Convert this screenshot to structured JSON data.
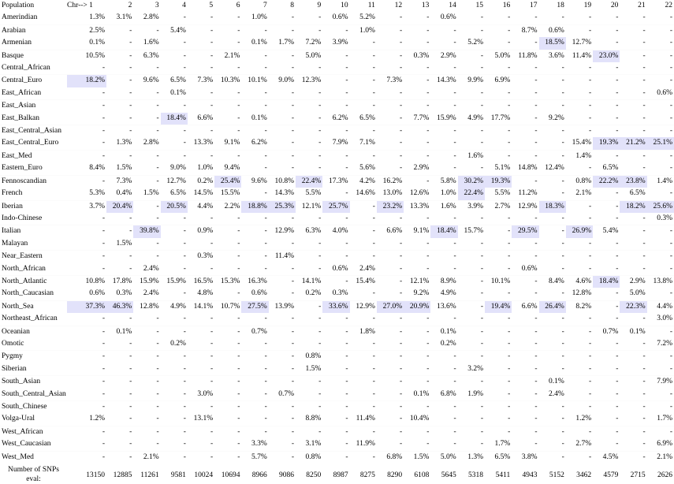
{
  "header": {
    "population_label": "Population",
    "chr_label": "Chr--> 1",
    "columns": [
      "2",
      "3",
      "4",
      "5",
      "6",
      "7",
      "8",
      "9",
      "10",
      "11",
      "12",
      "13",
      "14",
      "15",
      "16",
      "17",
      "18",
      "19",
      "20",
      "21",
      "22"
    ]
  },
  "rows": [
    {
      "name": "Amerindian",
      "values": [
        "1.3%",
        "3.1%",
        "2.8%",
        "-",
        "-",
        "-",
        "1.0%",
        "-",
        "-",
        "0.6%",
        "5.2%",
        "-",
        "-",
        "0.6%",
        "-",
        "-",
        "-",
        "-",
        "-",
        "-",
        "-",
        "-"
      ]
    },
    {
      "name": "Arabian",
      "values": [
        "2.5%",
        "-",
        "-",
        "5.4%",
        "-",
        "-",
        "-",
        "-",
        "-",
        "-",
        "1.0%",
        "-",
        "-",
        "-",
        "-",
        "-",
        "8.7%",
        "0.6%",
        "-",
        "-",
        "-",
        "-"
      ]
    },
    {
      "name": "Armenian",
      "values": [
        "0.1%",
        "-",
        "1.6%",
        "-",
        "-",
        "-",
        "0.1%",
        "1.7%",
        "7.2%",
        "3.9%",
        "-",
        "-",
        "-",
        "-",
        "5.2%",
        "-",
        "-",
        "18.5%",
        "12.7%",
        "-",
        "-",
        "-"
      ]
    },
    {
      "name": "Basque",
      "values": [
        "10.5%",
        "-",
        "6.3%",
        "-",
        "-",
        "2.1%",
        "-",
        "-",
        "5.0%",
        "-",
        "-",
        "-",
        "0.3%",
        "2.9%",
        "-",
        "5.0%",
        "11.8%",
        "3.6%",
        "11.4%",
        "23.0%",
        "-",
        "-"
      ]
    },
    {
      "name": "Central_African",
      "values": [
        "-",
        "-",
        "-",
        "-",
        "-",
        "-",
        "-",
        "-",
        "-",
        "-",
        "-",
        "-",
        "-",
        "-",
        "-",
        "-",
        "-",
        "-",
        "-",
        "-",
        "-",
        "-"
      ]
    },
    {
      "name": "Central_Euro",
      "values": [
        "18.2%",
        "-",
        "9.6%",
        "6.5%",
        "7.3%",
        "10.3%",
        "10.1%",
        "9.0%",
        "12.3%",
        "-",
        "-",
        "7.3%",
        "-",
        "14.3%",
        "9.9%",
        "6.9%",
        "-",
        "-",
        "-",
        "-",
        "-",
        "-"
      ]
    },
    {
      "name": "East_African",
      "values": [
        "-",
        "-",
        "-",
        "0.1%",
        "-",
        "-",
        "-",
        "-",
        "-",
        "-",
        "-",
        "-",
        "-",
        "-",
        "-",
        "-",
        "-",
        "-",
        "-",
        "-",
        "-",
        "0.6%"
      ]
    },
    {
      "name": "East_Asian",
      "values": [
        "-",
        "-",
        "-",
        "-",
        "-",
        "-",
        "-",
        "-",
        "-",
        "-",
        "-",
        "-",
        "-",
        "-",
        "-",
        "-",
        "-",
        "-",
        "-",
        "-",
        "-",
        "-"
      ]
    },
    {
      "name": "East_Balkan",
      "values": [
        "-",
        "-",
        "-",
        "18.4%",
        "6.6%",
        "-",
        "0.1%",
        "-",
        "-",
        "6.2%",
        "6.5%",
        "-",
        "7.7%",
        "15.9%",
        "4.9%",
        "17.7%",
        "-",
        "9.2%",
        "-",
        "-",
        "-",
        "-"
      ]
    },
    {
      "name": "East_Central_Asian",
      "values": [
        "-",
        "-",
        "-",
        "-",
        "-",
        "-",
        "-",
        "-",
        "-",
        "-",
        "-",
        "-",
        "-",
        "-",
        "-",
        "-",
        "-",
        "-",
        "-",
        "-",
        "-",
        "-"
      ]
    },
    {
      "name": "East_Central_Euro",
      "values": [
        "-",
        "1.3%",
        "2.8%",
        "-",
        "13.3%",
        "9.1%",
        "6.2%",
        "-",
        "-",
        "7.9%",
        "7.1%",
        "-",
        "-",
        "-",
        "-",
        "-",
        "-",
        "-",
        "15.4%",
        "19.3%",
        "21.2%",
        "25.1%"
      ]
    },
    {
      "name": "East_Med",
      "values": [
        "-",
        "-",
        "-",
        "-",
        "-",
        "-",
        "-",
        "-",
        "-",
        "-",
        "-",
        "-",
        "-",
        "-",
        "1.6%",
        "-",
        "-",
        "-",
        "1.4%",
        "-",
        "-",
        "-"
      ]
    },
    {
      "name": "Eastern_Euro",
      "values": [
        "8.4%",
        "1.5%",
        "-",
        "9.0%",
        "1.0%",
        "9.4%",
        "-",
        "-",
        "-",
        "-",
        "5.6%",
        "-",
        "2.9%",
        "-",
        "-",
        "5.1%",
        "14.8%",
        "12.4%",
        "-",
        "6.5%",
        "-",
        "-"
      ]
    },
    {
      "name": "Fennoscandian",
      "values": [
        "-",
        "7.3%",
        "-",
        "12.7%",
        "0.2%",
        "25.4%",
        "9.6%",
        "10.8%",
        "22.4%",
        "17.3%",
        "4.2%",
        "16.2%",
        "-",
        "5.8%",
        "30.2%",
        "19.3%",
        "-",
        "-",
        "0.8%",
        "22.2%",
        "23.8%",
        "1.4%"
      ]
    },
    {
      "name": "French",
      "values": [
        "5.3%",
        "0.4%",
        "1.5%",
        "6.5%",
        "14.5%",
        "15.5%",
        "-",
        "14.3%",
        "5.5%",
        "-",
        "14.6%",
        "13.0%",
        "12.6%",
        "1.0%",
        "22.4%",
        "5.5%",
        "11.2%",
        "-",
        "2.1%",
        "-",
        "6.5%",
        "-"
      ]
    },
    {
      "name": "Iberian",
      "values": [
        "3.7%",
        "20.4%",
        "-",
        "20.5%",
        "4.4%",
        "2.2%",
        "18.8%",
        "25.3%",
        "12.1%",
        "25.7%",
        "-",
        "23.2%",
        "13.3%",
        "1.6%",
        "3.9%",
        "2.7%",
        "12.9%",
        "18.3%",
        "-",
        "-",
        "18.2%",
        "25.6%"
      ]
    },
    {
      "name": "Indo-Chinese",
      "values": [
        "-",
        "-",
        "-",
        "-",
        "-",
        "-",
        "-",
        "-",
        "-",
        "-",
        "-",
        "-",
        "-",
        "-",
        "-",
        "-",
        "-",
        "-",
        "-",
        "-",
        "-",
        "0.3%"
      ]
    },
    {
      "name": "Italian",
      "values": [
        "-",
        "-",
        "39.8%",
        "-",
        "0.9%",
        "-",
        "-",
        "12.9%",
        "6.3%",
        "4.0%",
        "-",
        "6.6%",
        "9.1%",
        "18.4%",
        "15.7%",
        "-",
        "29.5%",
        "-",
        "26.9%",
        "5.4%",
        "-",
        "-"
      ]
    },
    {
      "name": "Malayan",
      "values": [
        "-",
        "1.5%",
        "-",
        "-",
        "-",
        "-",
        "-",
        "-",
        "-",
        "-",
        "-",
        "-",
        "-",
        "-",
        "-",
        "-",
        "-",
        "-",
        "-",
        "-",
        "-",
        "-"
      ]
    },
    {
      "name": "Near_Eastern",
      "values": [
        "-",
        "-",
        "-",
        "-",
        "0.3%",
        "-",
        "-",
        "11.4%",
        "-",
        "-",
        "-",
        "-",
        "-",
        "-",
        "-",
        "-",
        "-",
        "-",
        "-",
        "-",
        "-",
        "-"
      ]
    },
    {
      "name": "North_African",
      "values": [
        "-",
        "-",
        "2.4%",
        "-",
        "-",
        "-",
        "-",
        "-",
        "-",
        "0.6%",
        "2.4%",
        "-",
        "-",
        "-",
        "-",
        "-",
        "0.6%",
        "-",
        "-",
        "-",
        "-",
        "-"
      ]
    },
    {
      "name": "North_Atlantic",
      "values": [
        "10.8%",
        "17.8%",
        "15.9%",
        "15.9%",
        "16.5%",
        "15.3%",
        "16.3%",
        "-",
        "14.1%",
        "-",
        "15.4%",
        "-",
        "12.1%",
        "8.9%",
        "-",
        "10.1%",
        "-",
        "8.4%",
        "4.6%",
        "18.4%",
        "2.9%",
        "13.8%"
      ]
    },
    {
      "name": "North_Caucasian",
      "values": [
        "0.6%",
        "0.3%",
        "2.4%",
        "-",
        "4.8%",
        "-",
        "0.6%",
        "-",
        "0.2%",
        "0.3%",
        "-",
        "-",
        "9.2%",
        "4.9%",
        "-",
        "-",
        "-",
        "-",
        "12.8%",
        "-",
        "5.0%",
        "-"
      ]
    },
    {
      "name": "North_Sea",
      "values": [
        "37.3%",
        "46.3%",
        "12.8%",
        "4.9%",
        "14.1%",
        "10.7%",
        "27.5%",
        "13.9%",
        "-",
        "33.6%",
        "12.9%",
        "27.0%",
        "20.9%",
        "13.6%",
        "-",
        "19.4%",
        "6.6%",
        "26.4%",
        "8.2%",
        "-",
        "22.3%",
        "4.4%"
      ]
    },
    {
      "name": "Northeast_African",
      "values": [
        "-",
        "-",
        "-",
        "-",
        "-",
        "-",
        "-",
        "-",
        "-",
        "-",
        "-",
        "-",
        "-",
        "-",
        "-",
        "-",
        "-",
        "-",
        "-",
        "-",
        "-",
        "3.0%"
      ]
    },
    {
      "name": "Oceanian",
      "values": [
        "-",
        "0.1%",
        "-",
        "-",
        "-",
        "-",
        "0.7%",
        "-",
        "-",
        "-",
        "1.8%",
        "-",
        "-",
        "0.1%",
        "-",
        "-",
        "-",
        "-",
        "-",
        "0.7%",
        "0.1%",
        "-"
      ]
    },
    {
      "name": "Omotic",
      "values": [
        "-",
        "-",
        "-",
        "0.2%",
        "-",
        "-",
        "-",
        "-",
        "-",
        "-",
        "-",
        "-",
        "-",
        "0.2%",
        "-",
        "-",
        "-",
        "-",
        "-",
        "-",
        "-",
        "7.2%"
      ]
    },
    {
      "name": "Pygmy",
      "values": [
        "-",
        "-",
        "-",
        "-",
        "-",
        "-",
        "-",
        "-",
        "0.8%",
        "-",
        "-",
        "-",
        "-",
        "-",
        "-",
        "-",
        "-",
        "-",
        "-",
        "-",
        "-",
        "-"
      ]
    },
    {
      "name": "Siberian",
      "values": [
        "-",
        "-",
        "-",
        "-",
        "-",
        "-",
        "-",
        "-",
        "1.5%",
        "-",
        "-",
        "-",
        "-",
        "-",
        "3.2%",
        "-",
        "-",
        "-",
        "-",
        "-",
        "-",
        "-"
      ]
    },
    {
      "name": "South_Asian",
      "values": [
        "-",
        "-",
        "-",
        "-",
        "-",
        "-",
        "-",
        "-",
        "-",
        "-",
        "-",
        "-",
        "-",
        "-",
        "-",
        "-",
        "-",
        "0.1%",
        "-",
        "-",
        "-",
        "7.9%"
      ]
    },
    {
      "name": "South_Central_Asian",
      "values": [
        "-",
        "-",
        "-",
        "-",
        "3.0%",
        "-",
        "-",
        "0.7%",
        "-",
        "-",
        "-",
        "-",
        "0.1%",
        "6.8%",
        "1.9%",
        "-",
        "-",
        "2.4%",
        "-",
        "-",
        "-",
        "-"
      ]
    },
    {
      "name": "South_Chinese",
      "values": [
        "-",
        "-",
        "-",
        "-",
        "-",
        "-",
        "-",
        "-",
        "-",
        "-",
        "-",
        "-",
        "-",
        "-",
        "-",
        "-",
        "-",
        "-",
        "-",
        "-",
        "-",
        "-"
      ]
    },
    {
      "name": "Volga-Ural",
      "values": [
        "1.2%",
        "-",
        "-",
        "-",
        "13.1%",
        "-",
        "-",
        "-",
        "8.8%",
        "-",
        "11.4%",
        "-",
        "10.4%",
        "-",
        "-",
        "-",
        "-",
        "-",
        "1.2%",
        "-",
        "-",
        "1.7%"
      ]
    },
    {
      "name": "West_African",
      "values": [
        "-",
        "-",
        "-",
        "-",
        "-",
        "-",
        "-",
        "-",
        "-",
        "-",
        "-",
        "-",
        "-",
        "-",
        "-",
        "-",
        "-",
        "-",
        "-",
        "-",
        "-",
        "-"
      ]
    },
    {
      "name": "West_Caucasian",
      "values": [
        "-",
        "-",
        "-",
        "-",
        "-",
        "-",
        "3.3%",
        "-",
        "3.1%",
        "-",
        "11.9%",
        "-",
        "-",
        "-",
        "-",
        "1.7%",
        "-",
        "-",
        "2.7%",
        "-",
        "-",
        "6.9%"
      ]
    },
    {
      "name": "West_Med",
      "values": [
        "-",
        "-",
        "2.1%",
        "-",
        "-",
        "-",
        "5.7%",
        "-",
        "0.8%",
        "-",
        "-",
        "6.8%",
        "1.5%",
        "5.0%",
        "1.3%",
        "6.5%",
        "3.8%",
        "-",
        "-",
        "4.5%",
        "-",
        "2.1%"
      ]
    }
  ],
  "footer": {
    "label": "Number of SNPs eval:",
    "values": [
      "13150",
      "12885",
      "11261",
      "9581",
      "10024",
      "10694",
      "8966",
      "9086",
      "8250",
      "8987",
      "8275",
      "8290",
      "6108",
      "5645",
      "5318",
      "5411",
      "4943",
      "5152",
      "3462",
      "4579",
      "2715",
      "2626"
    ]
  },
  "highlight_color": "#e2e2fa",
  "highlight_threshold_pct": 18
}
